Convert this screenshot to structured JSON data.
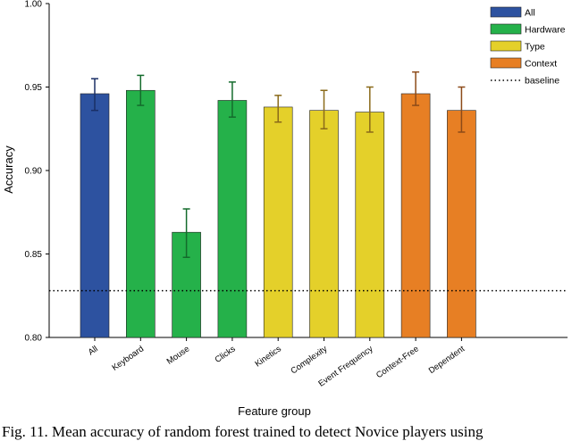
{
  "caption": "Fig. 11.   Mean accuracy of random forest trained to detect Novice players using",
  "chart_data": {
    "type": "bar",
    "title": "",
    "xlabel": "Feature group",
    "ylabel": "Accuracy",
    "ylim": [
      0.8,
      1.0
    ],
    "yticks": [
      "0.80",
      "0.85",
      "0.90",
      "0.95",
      "1.00"
    ],
    "categories": [
      "All",
      "Keyboard",
      "Mouse",
      "Clicks",
      "Kinetics",
      "Complexity",
      "Event Frequency",
      "Context-Free",
      "Dependent"
    ],
    "values": [
      0.946,
      0.948,
      0.863,
      0.942,
      0.938,
      0.936,
      0.935,
      0.946,
      0.936
    ],
    "error_low": [
      0.936,
      0.939,
      0.848,
      0.932,
      0.929,
      0.925,
      0.923,
      0.939,
      0.923
    ],
    "error_high": [
      0.955,
      0.957,
      0.877,
      0.953,
      0.945,
      0.948,
      0.95,
      0.959,
      0.95
    ],
    "groups": [
      "All",
      "Hardware",
      "Hardware",
      "Hardware",
      "Type",
      "Type",
      "Type",
      "Context",
      "Context"
    ],
    "baseline": 0.828,
    "legend": [
      {
        "label": "All",
        "color": "#2d52a0",
        "kind": "patch"
      },
      {
        "label": "Hardware",
        "color": "#25b14a",
        "kind": "patch"
      },
      {
        "label": "Type",
        "color": "#e4d02a",
        "kind": "patch"
      },
      {
        "label": "Context",
        "color": "#e77f24",
        "kind": "patch"
      },
      {
        "label": "baseline",
        "color": "#000000",
        "kind": "dotted-line"
      }
    ],
    "legend_position": "top-right",
    "group_colors": {
      "All": "#2d52a0",
      "Hardware": "#25b14a",
      "Type": "#e4d02a",
      "Context": "#e77f24"
    },
    "error_colors": {
      "All": "#1a2f66",
      "Hardware": "#146b2c",
      "Type": "#8a6a1a",
      "Context": "#8c4a18"
    }
  }
}
